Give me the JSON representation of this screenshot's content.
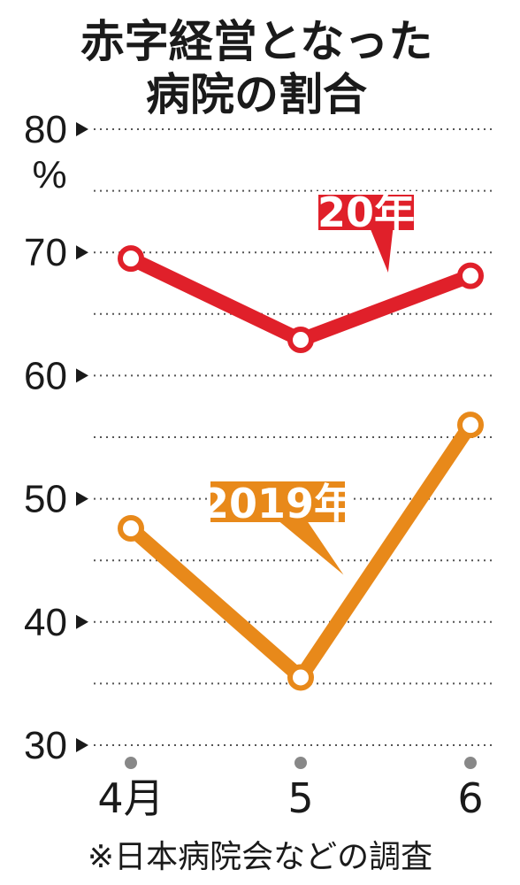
{
  "title_lines": [
    "赤字経営となった",
    "病院の割合"
  ],
  "source": "※日本病院会などの調査",
  "chart_data": {
    "type": "line",
    "categories": [
      "4月",
      "5",
      "6"
    ],
    "ylim": [
      30,
      80
    ],
    "y_ticks": [
      "80",
      "70",
      "60",
      "50",
      "40",
      "30"
    ],
    "y_tick_values": [
      80,
      70,
      60,
      50,
      40,
      30
    ],
    "y_unit": "%",
    "grid": true,
    "series": [
      {
        "name": "20年",
        "values": [
          69.5,
          62.9,
          68.1
        ],
        "color": "#e0202a"
      },
      {
        "name": "2019年",
        "values": [
          47.6,
          35.5,
          56.0
        ],
        "color": "#e8891a"
      }
    ]
  }
}
